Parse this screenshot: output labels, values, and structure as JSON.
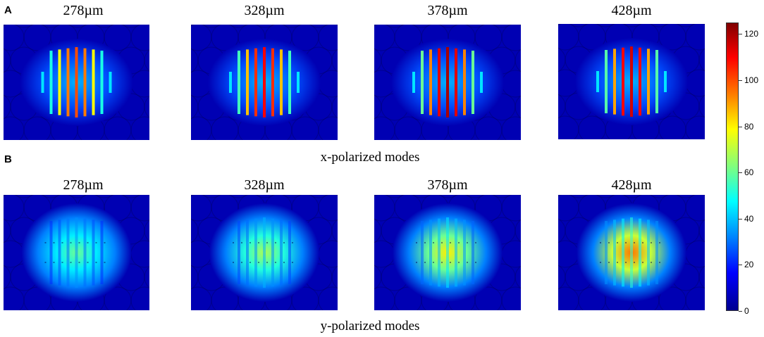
{
  "panels": {
    "a": {
      "label": "A",
      "caption": "x-polarized modes",
      "titles": [
        "278µm",
        "328µm",
        "378µm",
        "428µm"
      ],
      "peak_intensity": [
        100,
        110,
        120,
        115
      ]
    },
    "b": {
      "label": "B",
      "caption": "y-polarized modes",
      "titles": [
        "278µm",
        "328µm",
        "378µm",
        "428µm"
      ],
      "peak_intensity": [
        60,
        68,
        80,
        95
      ]
    }
  },
  "colorbar": {
    "min": 0,
    "max": 125,
    "ticks": [
      "0",
      "20",
      "40",
      "60",
      "80",
      "100",
      "120"
    ],
    "colormap": "jet"
  }
}
